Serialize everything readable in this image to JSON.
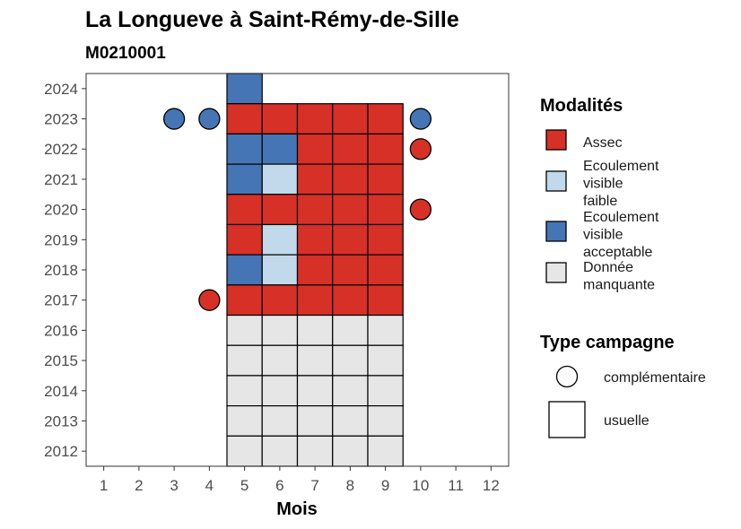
{
  "chart_data": {
    "type": "heatmap",
    "title": "La Longueve à Saint-Rémy-de-Sille",
    "subtitle": "M0210001",
    "xlabel": "Mois",
    "ylabel": "",
    "x_ticks": [
      1,
      2,
      3,
      4,
      5,
      6,
      7,
      8,
      9,
      10,
      11,
      12
    ],
    "y_ticks": [
      2012,
      2013,
      2014,
      2015,
      2016,
      2017,
      2018,
      2019,
      2020,
      2021,
      2022,
      2023,
      2024
    ],
    "xlim": [
      0.5,
      12.5
    ],
    "ylim": [
      2011.5,
      2024.5
    ],
    "colors": {
      "Assec": "#d73027",
      "Ecoulement visible faible": "#c1d9ea",
      "Ecoulement visible acceptable": "#4575b4",
      "Donnée manquante": "#e6e6e6"
    },
    "legend_modalites": {
      "title": "Modalités",
      "items": [
        {
          "key": "Assec",
          "lines": [
            "Assec"
          ]
        },
        {
          "key": "Ecoulement visible faible",
          "lines": [
            "Ecoulement",
            "visible",
            "faible"
          ]
        },
        {
          "key": "Ecoulement visible acceptable",
          "lines": [
            "Ecoulement",
            "visible",
            "acceptable"
          ]
        },
        {
          "key": "Donnée manquante",
          "lines": [
            "Donnée",
            "manquante"
          ]
        }
      ]
    },
    "legend_campagne": {
      "title": "Type campagne",
      "items": [
        {
          "label": "complémentaire",
          "shape": "circle"
        },
        {
          "label": "usuelle",
          "shape": "square"
        }
      ]
    },
    "usuelle": [
      {
        "year": 2024,
        "month": 5,
        "value": "Ecoulement visible acceptable"
      },
      {
        "year": 2023,
        "month": 5,
        "value": "Assec"
      },
      {
        "year": 2023,
        "month": 6,
        "value": "Assec"
      },
      {
        "year": 2023,
        "month": 7,
        "value": "Assec"
      },
      {
        "year": 2023,
        "month": 8,
        "value": "Assec"
      },
      {
        "year": 2023,
        "month": 9,
        "value": "Assec"
      },
      {
        "year": 2022,
        "month": 5,
        "value": "Ecoulement visible acceptable"
      },
      {
        "year": 2022,
        "month": 6,
        "value": "Ecoulement visible acceptable"
      },
      {
        "year": 2022,
        "month": 7,
        "value": "Assec"
      },
      {
        "year": 2022,
        "month": 8,
        "value": "Assec"
      },
      {
        "year": 2022,
        "month": 9,
        "value": "Assec"
      },
      {
        "year": 2021,
        "month": 5,
        "value": "Ecoulement visible acceptable"
      },
      {
        "year": 2021,
        "month": 6,
        "value": "Ecoulement visible faible"
      },
      {
        "year": 2021,
        "month": 7,
        "value": "Assec"
      },
      {
        "year": 2021,
        "month": 8,
        "value": "Assec"
      },
      {
        "year": 2021,
        "month": 9,
        "value": "Assec"
      },
      {
        "year": 2020,
        "month": 5,
        "value": "Assec"
      },
      {
        "year": 2020,
        "month": 6,
        "value": "Assec"
      },
      {
        "year": 2020,
        "month": 7,
        "value": "Assec"
      },
      {
        "year": 2020,
        "month": 8,
        "value": "Assec"
      },
      {
        "year": 2020,
        "month": 9,
        "value": "Assec"
      },
      {
        "year": 2019,
        "month": 5,
        "value": "Assec"
      },
      {
        "year": 2019,
        "month": 6,
        "value": "Ecoulement visible faible"
      },
      {
        "year": 2019,
        "month": 7,
        "value": "Assec"
      },
      {
        "year": 2019,
        "month": 8,
        "value": "Assec"
      },
      {
        "year": 2019,
        "month": 9,
        "value": "Assec"
      },
      {
        "year": 2018,
        "month": 5,
        "value": "Ecoulement visible acceptable"
      },
      {
        "year": 2018,
        "month": 6,
        "value": "Ecoulement visible faible"
      },
      {
        "year": 2018,
        "month": 7,
        "value": "Assec"
      },
      {
        "year": 2018,
        "month": 8,
        "value": "Assec"
      },
      {
        "year": 2018,
        "month": 9,
        "value": "Assec"
      },
      {
        "year": 2017,
        "month": 5,
        "value": "Assec"
      },
      {
        "year": 2017,
        "month": 6,
        "value": "Assec"
      },
      {
        "year": 2017,
        "month": 7,
        "value": "Assec"
      },
      {
        "year": 2017,
        "month": 8,
        "value": "Assec"
      },
      {
        "year": 2017,
        "month": 9,
        "value": "Assec"
      },
      {
        "year": 2016,
        "month": 5,
        "value": "Donnée manquante"
      },
      {
        "year": 2016,
        "month": 6,
        "value": "Donnée manquante"
      },
      {
        "year": 2016,
        "month": 7,
        "value": "Donnée manquante"
      },
      {
        "year": 2016,
        "month": 8,
        "value": "Donnée manquante"
      },
      {
        "year": 2016,
        "month": 9,
        "value": "Donnée manquante"
      },
      {
        "year": 2015,
        "month": 5,
        "value": "Donnée manquante"
      },
      {
        "year": 2015,
        "month": 6,
        "value": "Donnée manquante"
      },
      {
        "year": 2015,
        "month": 7,
        "value": "Donnée manquante"
      },
      {
        "year": 2015,
        "month": 8,
        "value": "Donnée manquante"
      },
      {
        "year": 2015,
        "month": 9,
        "value": "Donnée manquante"
      },
      {
        "year": 2014,
        "month": 5,
        "value": "Donnée manquante"
      },
      {
        "year": 2014,
        "month": 6,
        "value": "Donnée manquante"
      },
      {
        "year": 2014,
        "month": 7,
        "value": "Donnée manquante"
      },
      {
        "year": 2014,
        "month": 8,
        "value": "Donnée manquante"
      },
      {
        "year": 2014,
        "month": 9,
        "value": "Donnée manquante"
      },
      {
        "year": 2013,
        "month": 5,
        "value": "Donnée manquante"
      },
      {
        "year": 2013,
        "month": 6,
        "value": "Donnée manquante"
      },
      {
        "year": 2013,
        "month": 7,
        "value": "Donnée manquante"
      },
      {
        "year": 2013,
        "month": 8,
        "value": "Donnée manquante"
      },
      {
        "year": 2013,
        "month": 9,
        "value": "Donnée manquante"
      },
      {
        "year": 2012,
        "month": 5,
        "value": "Donnée manquante"
      },
      {
        "year": 2012,
        "month": 6,
        "value": "Donnée manquante"
      },
      {
        "year": 2012,
        "month": 7,
        "value": "Donnée manquante"
      },
      {
        "year": 2012,
        "month": 8,
        "value": "Donnée manquante"
      },
      {
        "year": 2012,
        "month": 9,
        "value": "Donnée manquante"
      }
    ],
    "complementaire": [
      {
        "year": 2023,
        "month": 3,
        "value": "Ecoulement visible acceptable"
      },
      {
        "year": 2023,
        "month": 4,
        "value": "Ecoulement visible acceptable"
      },
      {
        "year": 2023,
        "month": 10,
        "value": "Ecoulement visible acceptable"
      },
      {
        "year": 2022,
        "month": 10,
        "value": "Assec"
      },
      {
        "year": 2020,
        "month": 10,
        "value": "Assec"
      },
      {
        "year": 2017,
        "month": 4,
        "value": "Assec"
      }
    ]
  }
}
